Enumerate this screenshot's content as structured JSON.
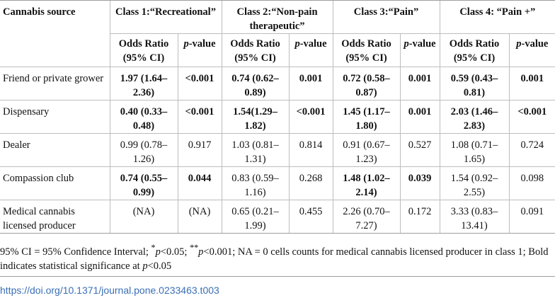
{
  "header": {
    "source_label": "Cannabis source",
    "classes": [
      "Class 1:“Recreational”",
      "Class 2:“Non-pain therapeutic”",
      "Class 3:“Pain”",
      "Class 4: “Pain +”"
    ],
    "or_label": "Odds Ratio (95% CI)",
    "p_label": "p-value"
  },
  "rows": [
    {
      "source": "Friend or private grower",
      "cells": [
        {
          "or": "1.97 (1.64–2.36)",
          "p": "<0.001",
          "bold": true
        },
        {
          "or": "0.74 (0.62–0.89)",
          "p": "0.001",
          "bold": true
        },
        {
          "or": "0.72 (0.58–0.87)",
          "p": "0.001",
          "bold": true
        },
        {
          "or": "0.59 (0.43–0.81)",
          "p": "0.001",
          "bold": true
        }
      ]
    },
    {
      "source": "Dispensary",
      "cells": [
        {
          "or": "0.40 (0.33–0.48)",
          "p": "<0.001",
          "bold": true
        },
        {
          "or": "1.54(1.29–1.82)",
          "p": "<0.001",
          "bold": true
        },
        {
          "or": "1.45 (1.17–1.80)",
          "p": "0.001",
          "bold": true
        },
        {
          "or": "2.03 (1.46–2.83)",
          "p": "<0.001",
          "bold": true
        }
      ]
    },
    {
      "source": "Dealer",
      "cells": [
        {
          "or": "0.99 (0.78–1.26)",
          "p": "0.917",
          "bold": false
        },
        {
          "or": "1.03 (0.81–1.31)",
          "p": "0.814",
          "bold": false
        },
        {
          "or": "0.91 (0.67–1.23)",
          "p": "0.527",
          "bold": false
        },
        {
          "or": "1.08 (0.71–1.65)",
          "p": "0.724",
          "bold": false
        }
      ]
    },
    {
      "source": "Compassion club",
      "cells": [
        {
          "or": "0.74 (0.55–0.99)",
          "p": "0.044",
          "bold": true
        },
        {
          "or": "0.83 (0.59–1.16)",
          "p": "0.268",
          "bold": false
        },
        {
          "or": "1.48 (1.02–2.14)",
          "p": "0.039",
          "bold": true
        },
        {
          "or": "1.54 (0.92–2.55)",
          "p": "0.098",
          "bold": false
        }
      ]
    },
    {
      "source": "Medical cannabis licensed producer",
      "cells": [
        {
          "or": "(NA)",
          "p": "(NA)",
          "bold": false
        },
        {
          "or": "0.65 (0.21–1.99)",
          "p": "0.455",
          "bold": false
        },
        {
          "or": "2.26 (0.70–7.27)",
          "p": "0.172",
          "bold": false
        },
        {
          "or": "3.33 (0.83–13.41)",
          "p": "0.091",
          "bold": false
        }
      ]
    }
  ],
  "footnote": "95% CI = 95% Confidence Interval; *p<0.05; **p<0.001; NA = 0 cells counts for medical cannabis licensed producer in class 1; Bold indicates statistical significance at p<0.05",
  "doi": "https://doi.org/10.1371/journal.pone.0233463.t003"
}
